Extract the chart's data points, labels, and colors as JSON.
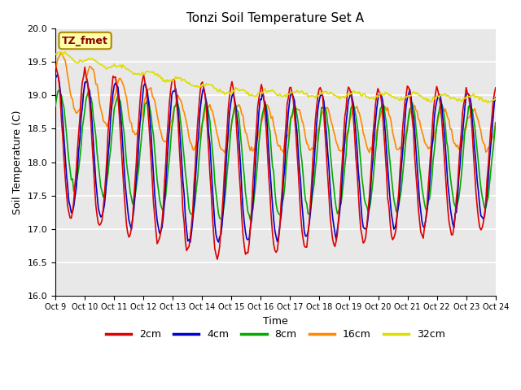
{
  "title": "Tonzi Soil Temperature Set A",
  "xlabel": "Time",
  "ylabel": "Soil Temperature (C)",
  "ylim": [
    16.0,
    20.0
  ],
  "yticks": [
    16.0,
    16.5,
    17.0,
    17.5,
    18.0,
    18.5,
    19.0,
    19.5,
    20.0
  ],
  "xtick_labels": [
    "Oct 9",
    "Oct 10",
    "Oct 11",
    "Oct 12",
    "Oct 13",
    "Oct 14",
    "Oct 15",
    "Oct 16",
    "Oct 17",
    "Oct 18",
    "Oct 19",
    "Oct 20",
    "Oct 21",
    "Oct 22",
    "Oct 23",
    "Oct 24"
  ],
  "legend_labels": [
    "2cm",
    "4cm",
    "8cm",
    "16cm",
    "32cm"
  ],
  "line_colors": [
    "#dd0000",
    "#0000cc",
    "#00aa00",
    "#ff8800",
    "#dddd00"
  ],
  "annotation_text": "TZ_fmet",
  "annotation_color": "#880000",
  "annotation_bg": "#ffffaa",
  "bg_color": "#e8e8e8",
  "fig_bg": "#ffffff"
}
